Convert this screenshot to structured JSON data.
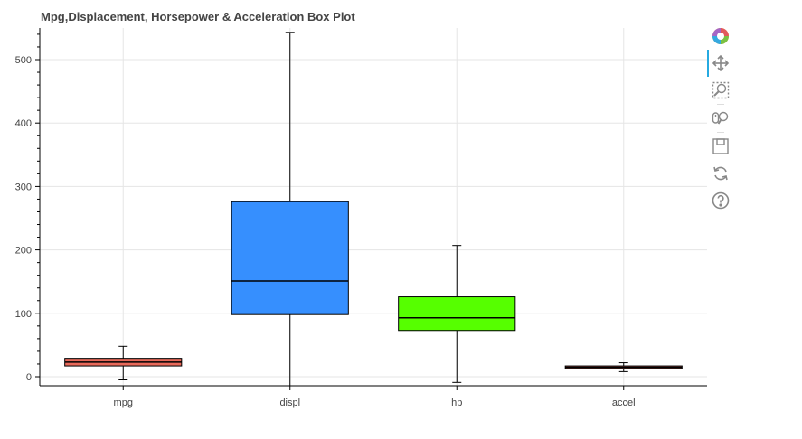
{
  "chart_data": {
    "type": "box",
    "title": "Mpg,Displacement, Horsepower & Acceleration Box Plot",
    "xlabel": "",
    "ylabel": "",
    "categories": [
      "mpg",
      "displ",
      "hp",
      "accel"
    ],
    "boxes": [
      {
        "name": "mpg",
        "whisker_low": -5,
        "q1": 17,
        "median": 23,
        "q3": 29,
        "whisker_high": 48,
        "color": "#e8695a"
      },
      {
        "name": "displ",
        "whisker_low": -20,
        "q1": 98,
        "median": 151,
        "q3": 276,
        "whisker_high": 543,
        "color": "#368ffe"
      },
      {
        "name": "hp",
        "whisker_low": -9,
        "q1": 73,
        "median": 93,
        "q3": 126,
        "whisker_high": 207,
        "color": "#56ff00"
      },
      {
        "name": "accel",
        "whisker_low": 8,
        "q1": 13,
        "median": 15,
        "q3": 17,
        "whisker_high": 22,
        "color": "#e8695a"
      }
    ],
    "y_ticks": [
      0,
      100,
      200,
      300,
      400,
      500
    ],
    "ylim": [
      -15,
      550
    ],
    "grid": true,
    "legend": "none"
  },
  "toolbar": {
    "tools": [
      {
        "name": "bokeh-logo-icon",
        "interactable": true
      },
      {
        "name": "pan-tool-icon",
        "interactable": true,
        "active": true
      },
      {
        "name": "box-zoom-tool-icon",
        "interactable": true
      },
      {
        "name": "wheel-zoom-tool-icon",
        "interactable": true
      },
      {
        "name": "save-tool-icon",
        "interactable": true
      },
      {
        "name": "reset-tool-icon",
        "interactable": true
      },
      {
        "name": "help-tool-icon",
        "interactable": true
      }
    ]
  }
}
